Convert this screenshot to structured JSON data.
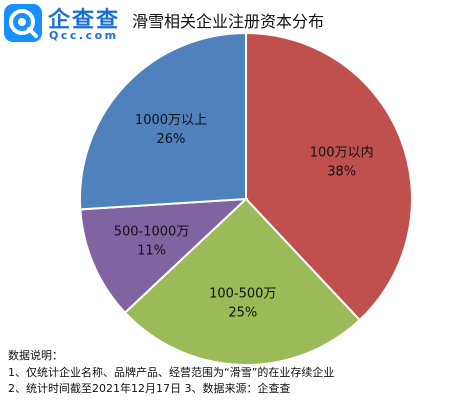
{
  "brand": {
    "name_cn": "企查查",
    "name_en": "Qcc.com",
    "color": "#1790ff"
  },
  "chart_data": {
    "type": "pie",
    "title": "滑雪相关企业注册资本分布",
    "slices": [
      {
        "label": "100万以内",
        "value": 38,
        "pct_label": "38%",
        "color": "#c0504d"
      },
      {
        "label": "100-500万",
        "value": 25,
        "pct_label": "25%",
        "color": "#9bbb59"
      },
      {
        "label": "500-1000万",
        "value": 11,
        "pct_label": "11%",
        "color": "#8064a2"
      },
      {
        "label": "1000万以上",
        "value": 26,
        "pct_label": "26%",
        "color": "#4f81bd"
      }
    ],
    "start_angle": "12 o'clock",
    "direction": "clockwise",
    "labels_inside": true,
    "legend": "none"
  },
  "notes": {
    "heading": "数据说明：",
    "line1": "1、仅统计企业名称、品牌产品、经营范围为“滑雪”的在业存续企业",
    "line2": "2、统计时间截至2021年12月17日  3、数据来源：企查查"
  }
}
